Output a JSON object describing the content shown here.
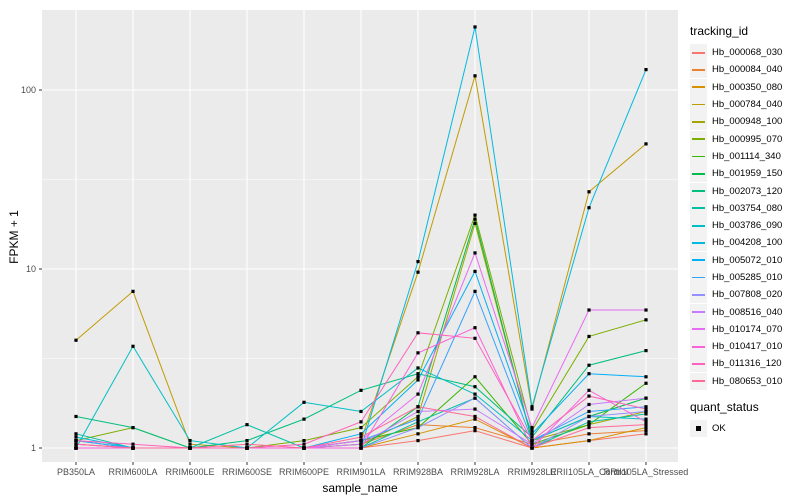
{
  "figure": {
    "y_axis": {
      "title": "FPKM + 1"
    },
    "x_axis": {
      "title": "sample_name"
    },
    "legend": {
      "tracking_title": "tracking_id",
      "quant_title": "quant_status",
      "quant_ok_label": "OK"
    }
  },
  "chart_data": {
    "type": "line",
    "title": "",
    "xlabel": "sample_name",
    "ylabel": "FPKM + 1",
    "y_scale": "log10",
    "ylim": [
      0.93,
      290
    ],
    "y_major_ticks": [
      1,
      10,
      100
    ],
    "y_minor_ticks": [
      3.1623,
      31.623
    ],
    "grid": true,
    "legend_position": "right",
    "panel_bg": "#EBEBEB",
    "grid_color": "#FFFFFF",
    "tick_color": "#333333",
    "text_color": "#4D4D4D",
    "point_shape": "filled-square",
    "point_color": "#000000",
    "quant_status": "OK",
    "categories": [
      "PB350LA",
      "RRIM600LA",
      "RRIM600LE",
      "RRIM600SE",
      "RRIM600PE",
      "RRIM901LA",
      "RRIM928BA",
      "RRIM928LA",
      "RRIM928LE",
      "RRII105LA_Control",
      "RRII105LA_Stressed"
    ],
    "series": [
      {
        "name": "Hb_000068_030",
        "color": "#F8766D",
        "values": [
          1.0,
          1.0,
          1.0,
          1.0,
          1.0,
          1.0,
          1.1,
          1.25,
          1.0,
          1.1,
          1.2
        ]
      },
      {
        "name": "Hb_000084_040",
        "color": "#EA8331",
        "values": [
          1.05,
          1.0,
          1.0,
          1.0,
          1.0,
          1.05,
          1.35,
          1.3,
          1.05,
          1.2,
          1.25
        ]
      },
      {
        "name": "Hb_000350_080",
        "color": "#D89000",
        "values": [
          1.0,
          1.0,
          1.0,
          1.0,
          1.0,
          1.0,
          1.2,
          1.45,
          1.0,
          1.1,
          1.3
        ]
      },
      {
        "name": "Hb_000784_040",
        "color": "#C09B00",
        "values": [
          4.0,
          7.5,
          1.05,
          1.0,
          1.0,
          1.1,
          9.6,
          120,
          1.65,
          27,
          50
        ]
      },
      {
        "name": "Hb_000948_100",
        "color": "#A3A500",
        "values": [
          1.0,
          1.0,
          1.0,
          1.0,
          1.0,
          1.05,
          1.5,
          18,
          1.1,
          1.35,
          1.6
        ]
      },
      {
        "name": "Hb_000995_070",
        "color": "#7CAE00",
        "values": [
          1.1,
          1.3,
          1.0,
          1.0,
          1.1,
          1.3,
          2.5,
          20,
          1.25,
          4.2,
          5.2
        ]
      },
      {
        "name": "Hb_001114_340",
        "color": "#39B600",
        "values": [
          1.0,
          1.0,
          1.0,
          1.0,
          1.0,
          1.1,
          1.3,
          2.5,
          1.05,
          1.35,
          2.3
        ]
      },
      {
        "name": "Hb_001959_150",
        "color": "#00BB4E",
        "values": [
          1.1,
          1.0,
          1.0,
          1.0,
          1.0,
          1.0,
          1.7,
          19,
          1.1,
          1.5,
          1.9
        ]
      },
      {
        "name": "Hb_002073_120",
        "color": "#00BF7D",
        "values": [
          1.5,
          1.3,
          1.0,
          1.1,
          1.45,
          2.1,
          2.6,
          2.2,
          1.15,
          2.9,
          3.5
        ]
      },
      {
        "name": "Hb_003754_080",
        "color": "#00C1A3",
        "values": [
          1.2,
          1.0,
          1.0,
          1.35,
          1.0,
          1.0,
          1.4,
          1.9,
          1.0,
          1.4,
          1.55
        ]
      },
      {
        "name": "Hb_003786_090",
        "color": "#00BFC4",
        "values": [
          1.0,
          3.7,
          1.1,
          1.0,
          1.8,
          1.6,
          2.8,
          2.0,
          1.1,
          1.5,
          1.45
        ]
      },
      {
        "name": "Hb_004208_100",
        "color": "#00BAE0",
        "values": [
          1.15,
          1.0,
          1.0,
          1.0,
          1.0,
          1.0,
          11,
          225,
          1.7,
          22,
          130
        ]
      },
      {
        "name": "Hb_005072_010",
        "color": "#00B0F6",
        "values": [
          1.0,
          1.0,
          1.0,
          1.0,
          1.0,
          1.2,
          2.4,
          9.7,
          1.2,
          2.6,
          2.5
        ]
      },
      {
        "name": "Hb_005285_010",
        "color": "#35A2FF",
        "values": [
          1.1,
          1.0,
          1.0,
          1.0,
          1.0,
          1.1,
          1.45,
          7.5,
          1.1,
          1.6,
          1.7
        ]
      },
      {
        "name": "Hb_007808_020",
        "color": "#9590FF",
        "values": [
          1.0,
          1.0,
          1.0,
          1.0,
          1.0,
          1.0,
          1.3,
          1.9,
          1.0,
          1.5,
          1.6
        ]
      },
      {
        "name": "Hb_008516_040",
        "color": "#C77CFF",
        "values": [
          1.0,
          1.0,
          1.0,
          1.0,
          1.0,
          1.05,
          1.6,
          1.65,
          1.05,
          1.75,
          1.9
        ]
      },
      {
        "name": "Hb_010174_070",
        "color": "#E76BF3",
        "values": [
          1.05,
          1.0,
          1.0,
          1.0,
          1.0,
          1.1,
          2.0,
          12.3,
          1.3,
          5.9,
          5.9
        ]
      },
      {
        "name": "Hb_010417_010",
        "color": "#FA62DB",
        "values": [
          1.0,
          1.0,
          1.0,
          1.0,
          1.0,
          1.0,
          3.4,
          4.7,
          1.0,
          2.1,
          1.4
        ]
      },
      {
        "name": "Hb_011316_120",
        "color": "#FF62BC",
        "values": [
          1.1,
          1.05,
          1.0,
          1.0,
          1.05,
          1.4,
          4.4,
          4.1,
          1.1,
          1.95,
          1.65
        ]
      },
      {
        "name": "Hb_080653_010",
        "color": "#FF6A98",
        "values": [
          1.05,
          1.0,
          1.0,
          1.05,
          1.0,
          1.15,
          1.7,
          1.5,
          1.0,
          1.3,
          1.35
        ]
      }
    ]
  }
}
